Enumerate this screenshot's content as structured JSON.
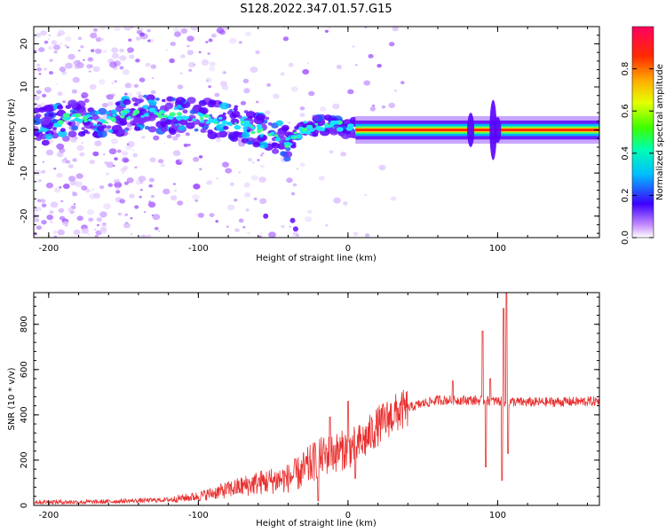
{
  "title": "S128.2022.347.01.57.G15",
  "chart_data": [
    {
      "type": "heatmap",
      "xlabel": "Height of straight line (km)",
      "ylabel": "Frequency (Hz)",
      "xlim": [
        -210,
        168
      ],
      "ylim": [
        -25,
        24
      ],
      "xticks": [
        -200,
        -100,
        0,
        100
      ],
      "yticks": [
        -20,
        -10,
        0,
        10,
        20
      ],
      "colorbar": {
        "label": "Normalized spectral amplitude",
        "range": [
          0,
          1
        ],
        "ticks": [
          "0.0",
          "0.2",
          "0.4",
          "0.6",
          "0.8"
        ]
      },
      "ridge": [
        {
          "x": -200,
          "f": 1
        },
        {
          "x": -185,
          "f": 3
        },
        {
          "x": -170,
          "f": 2
        },
        {
          "x": -140,
          "f": 4
        },
        {
          "x": -120,
          "f": 3.5
        },
        {
          "x": -100,
          "f": 3
        },
        {
          "x": -80,
          "f": 2
        },
        {
          "x": -60,
          "f": 0
        },
        {
          "x": -40,
          "f": -3
        },
        {
          "x": -30,
          "f": 0
        },
        {
          "x": -20,
          "f": 1
        },
        {
          "x": -10,
          "f": 1.5
        },
        {
          "x": 0,
          "f": 0.5
        },
        {
          "x": 10,
          "f": 0.5
        },
        {
          "x": 50,
          "f": 0
        },
        {
          "x": 100,
          "f": 0
        },
        {
          "x": 168,
          "f": 0
        }
      ]
    },
    {
      "type": "line",
      "xlabel": "Height of straight line (km)",
      "ylabel": "SNR (10 * v/v)",
      "xlim": [
        -210,
        168
      ],
      "ylim": [
        0,
        940
      ],
      "xticks": [
        -200,
        -100,
        0,
        100
      ],
      "yticks": [
        0,
        200,
        400,
        600,
        800
      ],
      "color": "#e8302f",
      "envelope": [
        {
          "x": -210,
          "y": 15
        },
        {
          "x": -170,
          "y": 15
        },
        {
          "x": -120,
          "y": 25
        },
        {
          "x": -100,
          "y": 40
        },
        {
          "x": -80,
          "y": 70
        },
        {
          "x": -60,
          "y": 100
        },
        {
          "x": -40,
          "y": 120
        },
        {
          "x": -30,
          "y": 150
        },
        {
          "x": -20,
          "y": 210
        },
        {
          "x": -10,
          "y": 230
        },
        {
          "x": 0,
          "y": 250
        },
        {
          "x": 10,
          "y": 280
        },
        {
          "x": 20,
          "y": 350
        },
        {
          "x": 30,
          "y": 400
        },
        {
          "x": 40,
          "y": 430
        },
        {
          "x": 50,
          "y": 450
        },
        {
          "x": 60,
          "y": 465
        },
        {
          "x": 80,
          "y": 465
        },
        {
          "x": 100,
          "y": 460
        },
        {
          "x": 120,
          "y": 455
        },
        {
          "x": 168,
          "y": 460
        }
      ],
      "spikes": [
        {
          "x": -20,
          "y": 420
        },
        {
          "x": -20,
          "y": 20
        },
        {
          "x": -12,
          "y": 390
        },
        {
          "x": 0,
          "y": 460
        },
        {
          "x": 5,
          "y": 120
        },
        {
          "x": 70,
          "y": 550
        },
        {
          "x": 90,
          "y": 770
        },
        {
          "x": 92,
          "y": 170
        },
        {
          "x": 95,
          "y": 560
        },
        {
          "x": 103,
          "y": 110
        },
        {
          "x": 104,
          "y": 870
        },
        {
          "x": 106,
          "y": 940
        },
        {
          "x": 107,
          "y": 230
        }
      ]
    }
  ]
}
